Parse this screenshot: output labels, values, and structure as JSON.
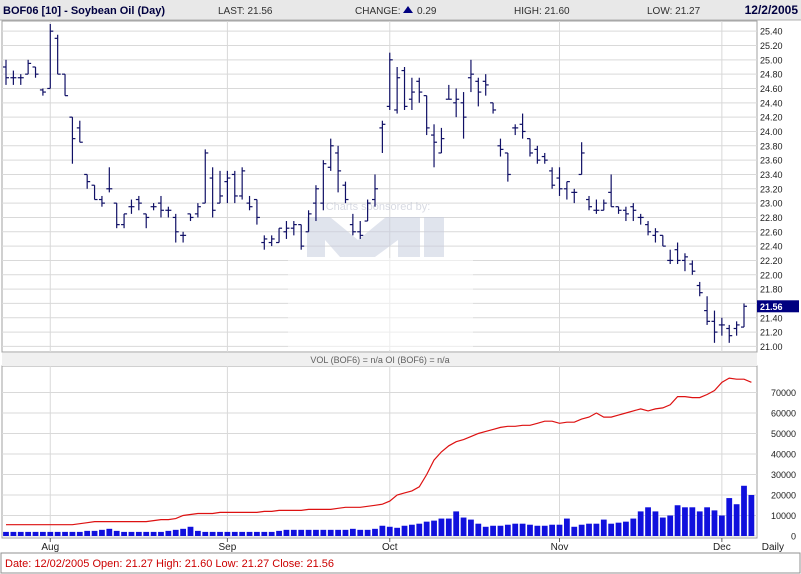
{
  "header": {
    "symbol_title": "BOF06 [10] - Soybean Oil (Day)",
    "last_label": "LAST: 21.56",
    "change_label": "CHANGE:",
    "change_value": "0.29",
    "high_label": "HIGH: 21.60",
    "low_label": "LOW: 21.27",
    "date": "12/2/2005"
  },
  "watermark": {
    "text": "Charts sponsored by:"
  },
  "volume_title": "VOL (BOF6) = n/a OI (BOF6) = n/a",
  "footer": {
    "text": "Date: 12/02/2005  Open: 21.27  High: 21.60  Low: 21.27  Close: 21.56"
  },
  "colors": {
    "header_bg": "#e8e8e8",
    "grid": "#d9d9d9",
    "price_bars": "#101066",
    "volume_bars": "#1010dd",
    "open_interest": "#dd1111",
    "last_box": "#000080",
    "change_up": "#000080",
    "footer_text": "#cc0000"
  },
  "chart_data": [
    {
      "type": "ohlc",
      "title": "BOF06 [10] - Soybean Oil (Day)",
      "x_tick_labels": [
        "Aug",
        "Sep",
        "Oct",
        "Nov",
        "Dec"
      ],
      "x_tick_index": [
        6,
        30,
        52,
        75,
        97
      ],
      "y_ticks": [
        21.0,
        21.2,
        21.4,
        21.6,
        21.8,
        22.0,
        22.2,
        22.4,
        22.6,
        22.8,
        23.0,
        23.2,
        23.4,
        23.6,
        23.8,
        24.0,
        24.2,
        24.4,
        24.6,
        24.8,
        25.0,
        25.2,
        25.4
      ],
      "ylim": [
        20.95,
        25.5
      ],
      "grid": true,
      "last_value": "21.56",
      "bars": [
        [
          24.9,
          25.0,
          24.65,
          24.75
        ],
        [
          24.75,
          24.85,
          24.65,
          24.75
        ],
        [
          24.75,
          24.8,
          24.65,
          24.75
        ],
        [
          24.8,
          25.0,
          24.8,
          24.95
        ],
        [
          24.9,
          24.9,
          24.75,
          24.8
        ],
        [
          24.58,
          24.6,
          24.5,
          24.55
        ],
        [
          24.6,
          25.5,
          24.6,
          25.4
        ],
        [
          25.3,
          25.35,
          24.8,
          24.8
        ],
        [
          24.8,
          24.8,
          24.5,
          24.5
        ],
        [
          24.2,
          24.2,
          23.55,
          23.9
        ],
        [
          24.05,
          24.15,
          23.85,
          23.85
        ],
        [
          23.4,
          23.4,
          23.2,
          23.3
        ],
        [
          23.25,
          23.25,
          23.05,
          23.05
        ],
        [
          23.05,
          23.1,
          22.95,
          23.0
        ],
        [
          23.2,
          23.5,
          23.15,
          23.2
        ],
        [
          23.0,
          23.0,
          22.65,
          22.7
        ],
        [
          22.7,
          22.85,
          22.65,
          22.85
        ],
        [
          22.95,
          23.05,
          22.85,
          22.95
        ],
        [
          23.05,
          23.1,
          22.9,
          23.0
        ],
        [
          22.85,
          22.85,
          22.65,
          22.8
        ],
        [
          22.95,
          23.0,
          22.9,
          22.95
        ],
        [
          23.0,
          23.1,
          22.8,
          22.9
        ],
        [
          22.9,
          22.95,
          22.8,
          22.9
        ],
        [
          22.8,
          22.85,
          22.45,
          22.6
        ],
        [
          22.55,
          22.6,
          22.45,
          22.55
        ],
        [
          22.85,
          22.85,
          22.75,
          22.8
        ],
        [
          22.85,
          23.0,
          22.8,
          22.95
        ],
        [
          23.0,
          23.75,
          23.0,
          23.7
        ],
        [
          23.35,
          23.5,
          22.8,
          22.9
        ],
        [
          23.0,
          23.45,
          23.0,
          23.1
        ],
        [
          23.3,
          23.45,
          23.0,
          23.35
        ],
        [
          23.4,
          23.45,
          23.0,
          23.1
        ],
        [
          23.1,
          23.5,
          23.05,
          23.45
        ],
        [
          23.0,
          23.1,
          22.9,
          22.95
        ],
        [
          23.05,
          23.05,
          22.7,
          22.8
        ],
        [
          22.45,
          22.55,
          22.35,
          22.5
        ],
        [
          22.45,
          22.55,
          22.4,
          22.5
        ],
        [
          22.45,
          22.65,
          22.45,
          22.65
        ],
        [
          22.6,
          22.75,
          22.5,
          22.65
        ],
        [
          22.65,
          22.75,
          22.55,
          22.7
        ],
        [
          22.7,
          22.7,
          22.35,
          22.4
        ],
        [
          22.6,
          22.9,
          22.6,
          22.85
        ],
        [
          23.0,
          23.25,
          22.75,
          23.2
        ],
        [
          23.0,
          23.6,
          22.9,
          23.55
        ],
        [
          23.5,
          23.9,
          23.45,
          23.8
        ],
        [
          23.7,
          23.8,
          23.15,
          23.45
        ],
        [
          23.25,
          23.3,
          23.0,
          23.05
        ],
        [
          22.7,
          22.85,
          22.55,
          22.6
        ],
        [
          22.6,
          22.75,
          22.5,
          22.55
        ],
        [
          22.75,
          23.05,
          22.75,
          23.0
        ],
        [
          23.05,
          23.4,
          22.95,
          23.2
        ],
        [
          24.05,
          24.15,
          23.7,
          24.1
        ],
        [
          24.35,
          25.1,
          24.3,
          25.0
        ],
        [
          24.3,
          24.9,
          24.25,
          24.75
        ],
        [
          24.85,
          24.9,
          24.3,
          24.35
        ],
        [
          24.45,
          24.75,
          24.3,
          24.55
        ],
        [
          24.7,
          24.75,
          24.4,
          24.55
        ],
        [
          24.5,
          24.5,
          23.95,
          24.05
        ],
        [
          23.95,
          24.1,
          23.5,
          23.85
        ],
        [
          23.7,
          24.05,
          23.7,
          23.9
        ],
        [
          24.45,
          24.65,
          24.45,
          24.45
        ],
        [
          24.4,
          24.6,
          24.2,
          24.45
        ],
        [
          24.4,
          24.55,
          23.9,
          24.2
        ],
        [
          24.75,
          25.0,
          24.55,
          24.8
        ],
        [
          24.7,
          24.75,
          24.35,
          24.55
        ],
        [
          24.7,
          24.8,
          24.5,
          24.65
        ],
        [
          24.4,
          24.4,
          24.25,
          24.3
        ],
        [
          23.8,
          23.9,
          23.65,
          23.75
        ],
        [
          23.7,
          23.7,
          23.3,
          23.4
        ],
        [
          24.05,
          24.1,
          23.95,
          24.05
        ],
        [
          24.1,
          24.25,
          23.9,
          24.0
        ],
        [
          23.9,
          23.9,
          23.65,
          23.7
        ],
        [
          23.75,
          23.8,
          23.55,
          23.6
        ],
        [
          23.65,
          23.7,
          23.55,
          23.6
        ],
        [
          23.45,
          23.5,
          23.2,
          23.25
        ],
        [
          23.35,
          23.5,
          23.1,
          23.2
        ],
        [
          23.2,
          23.3,
          23.05,
          23.3
        ],
        [
          23.15,
          23.2,
          23.0,
          23.15
        ],
        [
          23.4,
          23.85,
          23.4,
          23.7
        ],
        [
          23.05,
          23.1,
          22.9,
          22.95
        ],
        [
          22.9,
          23.05,
          22.85,
          22.9
        ],
        [
          22.9,
          23.05,
          22.9,
          23.0
        ],
        [
          23.15,
          23.4,
          22.95,
          22.95
        ],
        [
          22.95,
          22.95,
          22.85,
          22.9
        ],
        [
          22.9,
          22.95,
          22.75,
          22.85
        ],
        [
          22.95,
          23.0,
          22.75,
          22.9
        ],
        [
          22.8,
          22.85,
          22.7,
          22.8
        ],
        [
          22.7,
          22.75,
          22.55,
          22.6
        ],
        [
          22.55,
          22.65,
          22.45,
          22.6
        ],
        [
          22.55,
          22.55,
          22.4,
          22.4
        ],
        [
          22.2,
          22.35,
          22.15,
          22.2
        ],
        [
          22.35,
          22.45,
          22.15,
          22.2
        ],
        [
          22.2,
          22.3,
          22.05,
          22.25
        ],
        [
          22.15,
          22.2,
          22.0,
          22.05
        ],
        [
          21.85,
          21.9,
          21.7,
          21.75
        ],
        [
          21.5,
          21.7,
          21.3,
          21.35
        ],
        [
          21.35,
          21.5,
          21.05,
          21.2
        ],
        [
          21.3,
          21.4,
          21.15,
          21.3
        ],
        [
          21.25,
          21.3,
          21.05,
          21.15
        ],
        [
          21.25,
          21.35,
          21.15,
          21.3
        ],
        [
          21.27,
          21.6,
          21.27,
          21.56
        ]
      ]
    },
    {
      "type": "bar+line",
      "title": "VOL (BOF6) = n/a OI (BOF6) = n/a",
      "y_ticks": [
        0,
        10000,
        20000,
        30000,
        40000,
        50000,
        60000,
        70000
      ],
      "ylim": [
        0,
        80000
      ],
      "x_axis_extra_label": "Daily",
      "series": [
        {
          "type": "bar",
          "values": [
            2000,
            2000,
            2000,
            2000,
            2000,
            2000,
            2000,
            2000,
            2000,
            2000,
            2000,
            2500,
            2500,
            3000,
            3500,
            2500,
            2000,
            2000,
            2000,
            2000,
            2000,
            2000,
            2500,
            3000,
            3500,
            4500,
            2500,
            2000,
            2000,
            2000,
            2000,
            2000,
            2000,
            2000,
            2000,
            2000,
            2000,
            2500,
            3000,
            3000,
            3000,
            3000,
            3000,
            3000,
            3000,
            3000,
            3000,
            3500,
            3000,
            3000,
            3500,
            5000,
            4500,
            4000,
            5000,
            5500,
            6000,
            7000,
            7500,
            8500,
            8500,
            12000,
            9000,
            8000,
            6000,
            4500,
            5000,
            5000,
            5500,
            6000,
            6000,
            5500,
            5000,
            5000,
            5500,
            5500,
            8500,
            4500,
            5500,
            6000,
            6000,
            8000,
            6000,
            6500,
            7000,
            8500,
            12000,
            14000,
            12000,
            9000,
            10000,
            15000,
            14000,
            14000,
            12000,
            14000,
            12500,
            10000,
            18500,
            15500,
            24500,
            20000
          ]
        },
        {
          "type": "line",
          "values": [
            5500,
            5500,
            5500,
            5500,
            5500,
            5500,
            5500,
            5500,
            5500,
            5500,
            6000,
            6500,
            7000,
            7000,
            7000,
            7000,
            7000,
            7000,
            7000,
            7000,
            7500,
            8000,
            8000,
            8500,
            10000,
            10500,
            11000,
            11000,
            11000,
            11500,
            11500,
            11500,
            11500,
            11500,
            11500,
            12000,
            12000,
            12500,
            12500,
            12500,
            12500,
            13000,
            13000,
            13000,
            13000,
            13500,
            14000,
            14000,
            14000,
            14500,
            15000,
            15500,
            17000,
            20000,
            21000,
            22000,
            24000,
            30000,
            37000,
            41000,
            44000,
            46000,
            47000,
            48500,
            50000,
            51000,
            52000,
            53000,
            53500,
            53500,
            54000,
            54000,
            55000,
            56000,
            56000,
            55000,
            55500,
            55500,
            57000,
            58000,
            60000,
            58000,
            58000,
            59000,
            60000,
            61000,
            62000,
            61000,
            62000,
            62500,
            64000,
            68000,
            68000,
            67500,
            67500,
            69000,
            71000,
            75000,
            77000,
            76500,
            76500,
            75000
          ]
        }
      ]
    }
  ]
}
